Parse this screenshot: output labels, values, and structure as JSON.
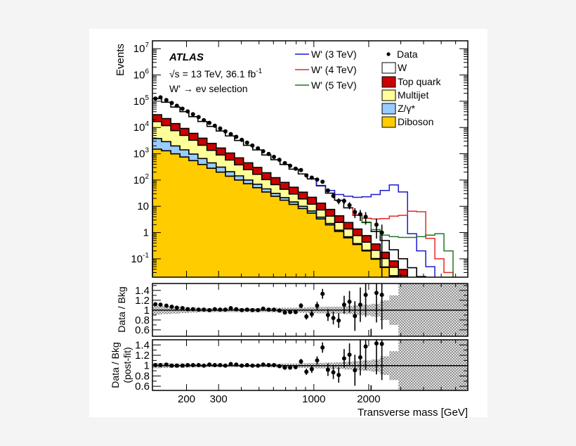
{
  "chart_data": [
    {
      "type": "histogram-stacked",
      "panel": "main",
      "ylabel": "Events",
      "y_scale": "log",
      "x_scale": "log",
      "xlim": [
        130,
        7000
      ],
      "ylim": [
        0.02,
        20000000
      ],
      "y_ticks": [
        {
          "value": 10000000,
          "label": "10",
          "sup": "7"
        },
        {
          "value": 1000000,
          "label": "10",
          "sup": "6"
        },
        {
          "value": 100000,
          "label": "10",
          "sup": "5"
        },
        {
          "value": 10000,
          "label": "10",
          "sup": "4"
        },
        {
          "value": 1000,
          "label": "10",
          "sup": "3"
        },
        {
          "value": 100,
          "label": "10",
          "sup": "2"
        },
        {
          "value": 10,
          "label": "10",
          "sup": ""
        },
        {
          "value": 1,
          "label": "1",
          "sup": ""
        },
        {
          "value": 0.1,
          "label": "10",
          "sup": "-1"
        }
      ],
      "annotations": {
        "experiment": "ATLAS",
        "energy": "√s = 13 TeV, 36.1 fb",
        "energy_sup": "-1",
        "selection": "W' → eν selection"
      },
      "bin_edges": [
        130,
        146,
        164,
        184,
        206,
        231,
        259,
        291,
        327,
        367,
        411,
        462,
        518,
        581,
        652,
        731,
        821,
        921,
        1033,
        1159,
        1301,
        1459,
        1637,
        1837,
        2061,
        2313,
        2595,
        2911,
        3267,
        3665,
        4112,
        4614,
        5177,
        5808
      ],
      "stack": [
        {
          "name": "Diboson",
          "color": "#ffcc00",
          "values": [
            1500,
            1300,
            990,
            750,
            550,
            390,
            280,
            200,
            140,
            100,
            72,
            51,
            35,
            24,
            17,
            11.8,
            8.2,
            5.5,
            3.3,
            1.95,
            1.1,
            0.63,
            0.35,
            0.2,
            0.097,
            0.047,
            0.022,
            0.0104,
            0.005,
            0.0024,
            0.0011,
            0,
            0
          ]
        },
        {
          "name": "Z/γ*",
          "color": "#99ccff",
          "values": [
            2300,
            1600,
            1000,
            660,
            420,
            270,
            170,
            110,
            68,
            44,
            28,
            18,
            11,
            7,
            4.4,
            2.8,
            1.8,
            1.1,
            0.55,
            0.27,
            0.13,
            0.06,
            0.028,
            0.013,
            0.005,
            0.002,
            0.0007,
            0.0002,
            0.0001,
            0,
            0,
            0,
            0
          ]
        },
        {
          "name": "Multijet",
          "color": "#ffff99",
          "values": [
            13000,
            8900,
            5600,
            3600,
            2300,
            1450,
            900,
            590,
            370,
            235,
            148,
            95,
            58,
            36,
            23,
            14.6,
            9,
            5.5,
            3.4,
            2.0,
            1.2,
            0.68,
            0.39,
            0.22,
            0.108,
            0.053,
            0.025,
            0.012,
            0.0058,
            0.0028,
            0.0013,
            0,
            0
          ]
        },
        {
          "name": "Top quark",
          "color": "#cc0000",
          "values": [
            14000,
            10000,
            6500,
            4200,
            2700,
            1800,
            1130,
            750,
            490,
            320,
            205,
            136,
            86,
            56,
            37,
            24,
            15.5,
            9.9,
            5.9,
            3.4,
            1.9,
            1.05,
            0.59,
            0.33,
            0.158,
            0.076,
            0.035,
            0.0167,
            0.008,
            0.0038,
            0.0018,
            0,
            0
          ]
        },
        {
          "name": "W",
          "color": "#ffffff",
          "values": [
            96000,
            70000,
            46000,
            31000,
            20000,
            13000,
            8500,
            5700,
            3700,
            2500,
            1650,
            1100,
            710,
            470,
            310,
            207,
            136,
            88,
            47,
            24,
            12.6,
            6.3,
            3.2,
            1.64,
            0.73,
            0.32,
            0.138,
            0.061,
            0.027,
            0.012,
            0.0051,
            0,
            0
          ]
        }
      ],
      "signals": [
        {
          "name": "W' (3 TeV)",
          "color": "#1a1acc",
          "values": [
            null,
            null,
            null,
            null,
            null,
            null,
            null,
            null,
            null,
            null,
            null,
            null,
            null,
            null,
            null,
            null,
            null,
            null,
            62,
            40,
            28,
            24,
            22,
            23,
            28,
            40,
            65,
            35,
            0.9,
            0.2,
            0.05,
            0.01,
            null
          ]
        },
        {
          "name": "W' (4 TeV)",
          "color": "#e62828",
          "values": [
            null,
            null,
            null,
            null,
            null,
            null,
            null,
            null,
            null,
            null,
            null,
            null,
            null,
            null,
            null,
            null,
            null,
            null,
            null,
            null,
            null,
            null,
            4.8,
            3.5,
            3.3,
            3.4,
            4.2,
            4.5,
            6.5,
            6.2,
            0.6,
            0.1,
            0.03
          ]
        },
        {
          "name": "W' (5 TeV)",
          "color": "#227722",
          "values": [
            null,
            null,
            null,
            null,
            null,
            null,
            null,
            null,
            null,
            null,
            null,
            null,
            null,
            null,
            null,
            null,
            null,
            null,
            null,
            null,
            null,
            null,
            null,
            2.5,
            1.3,
            0.8,
            0.7,
            0.65,
            0.65,
            0.7,
            0.8,
            0.9,
            0.2
          ]
        }
      ],
      "data": {
        "name": "Data",
        "x": [
          135,
          144,
          155,
          166,
          177,
          190,
          203,
          217,
          233,
          249,
          267,
          286,
          306,
          327,
          350,
          375,
          402,
          430,
          460,
          493,
          527,
          565,
          604,
          647,
          693,
          741,
          794,
          850,
          910,
          974,
          1042,
          1116,
          1195,
          1279,
          1369,
          1466,
          1569,
          1680,
          1798,
          1925,
          2061,
          2206,
          2362
        ],
        "y": [
          126000,
          141000,
          111000,
          86000,
          67000,
          52000,
          41000,
          32000,
          25000,
          19000,
          15000,
          11700,
          9200,
          7100,
          5600,
          4400,
          3400,
          2650,
          2060,
          1610,
          1250,
          980,
          760,
          590,
          440,
          350,
          270,
          240,
          150,
          123,
          104,
          86,
          40,
          25,
          16,
          16,
          11,
          6,
          5,
          4,
          0,
          2,
          1
        ]
      },
      "legend": "top-right"
    },
    {
      "type": "ratio",
      "panel": "ratio-prefit",
      "ylabel": "Data / Bkg",
      "ylim": [
        0.47,
        1.54
      ],
      "y_ticks": [
        "1.4",
        "1.2",
        "1",
        "0.8",
        "0.6"
      ],
      "x": [
        135,
        144,
        155,
        166,
        177,
        190,
        203,
        217,
        233,
        249,
        267,
        286,
        306,
        327,
        350,
        375,
        402,
        430,
        460,
        493,
        527,
        565,
        604,
        647,
        693,
        741,
        794,
        850,
        910,
        974,
        1042,
        1116,
        1195,
        1279,
        1369,
        1466,
        1569,
        1680,
        1798,
        1925,
        2061,
        2206,
        2362
      ],
      "ratio": [
        1.12,
        1.11,
        1.09,
        1.07,
        1.05,
        1.04,
        1.02,
        1.02,
        1.01,
        1.01,
        1.0,
        1.02,
        1.01,
        1.01,
        1.04,
        1.02,
        1.0,
        1.01,
        1.0,
        1.0,
        1.03,
        1.01,
        1.01,
        0.99,
        0.95,
        0.96,
        0.96,
        1.09,
        0.87,
        0.92,
        1.09,
        1.33,
        0.9,
        0.84,
        0.79,
        1.11,
        1.17,
        0.88,
        1.11,
        1.31,
        0,
        1.35,
        1.31
      ],
      "errors": [
        0.012,
        0.012,
        0.012,
        0.012,
        0.012,
        0.012,
        0.012,
        0.012,
        0.012,
        0.012,
        0.012,
        0.012,
        0.012,
        0.012,
        0.012,
        0.012,
        0.012,
        0.012,
        0.012,
        0.012,
        0.012,
        0.012,
        0.012,
        0.012,
        0.03,
        0.03,
        0.04,
        0.05,
        0.06,
        0.07,
        0.08,
        0.1,
        0.12,
        0.13,
        0.15,
        0.18,
        0.22,
        0.3,
        0.35,
        0.45,
        0.62,
        0.6,
        0.7
      ],
      "band_edges": [
        130,
        146,
        164,
        184,
        206,
        231,
        259,
        291,
        327,
        367,
        411,
        462,
        518,
        581,
        652,
        731,
        821,
        921,
        1033,
        1159,
        1301,
        1459,
        1637,
        1837,
        2061,
        2313,
        2595,
        2911,
        3267,
        3665,
        4112,
        4614,
        5177,
        5808,
        7000
      ],
      "band_halfwidth": [
        0.09,
        0.08,
        0.07,
        0.06,
        0.05,
        0.04,
        0.04,
        0.04,
        0.04,
        0.04,
        0.04,
        0.04,
        0.04,
        0.045,
        0.05,
        0.05,
        0.055,
        0.06,
        0.065,
        0.07,
        0.07,
        0.08,
        0.1,
        0.11,
        0.13,
        0.2,
        0.3,
        1,
        1,
        1,
        1,
        1,
        1,
        1
      ]
    },
    {
      "type": "ratio",
      "panel": "ratio-postfit",
      "ylabel": "Data / Bkg",
      "ylabel2": "(post-fit)",
      "ylim": [
        0.52,
        1.5
      ],
      "y_ticks": [
        "1.4",
        "1.2",
        "1",
        "0.8",
        "0.6"
      ],
      "x_ticks": [
        "200",
        "300",
        "1000",
        "2000"
      ],
      "xlabel": "Transverse mass [GeV]",
      "x": [
        135,
        144,
        155,
        166,
        177,
        190,
        203,
        217,
        233,
        249,
        267,
        286,
        306,
        327,
        350,
        375,
        402,
        430,
        460,
        493,
        527,
        565,
        604,
        647,
        693,
        741,
        794,
        850,
        910,
        974,
        1042,
        1116,
        1195,
        1279,
        1369,
        1466,
        1569,
        1680,
        1798,
        1925,
        2061,
        2206,
        2362
      ],
      "ratio": [
        1.01,
        1.01,
        1.02,
        1.0,
        1.0,
        1.0,
        1.01,
        1.01,
        1.01,
        1.0,
        1.02,
        1.01,
        1.01,
        1.0,
        1.03,
        1.02,
        1.0,
        1.01,
        1.0,
        1.0,
        1.02,
        1.01,
        1.01,
        0.99,
        0.96,
        0.96,
        0.97,
        1.08,
        0.88,
        0.93,
        1.1,
        1.35,
        0.92,
        0.87,
        0.82,
        1.14,
        1.21,
        0.91,
        1.16,
        1.37,
        0,
        1.43,
        1.42
      ],
      "errors": [
        0.012,
        0.012,
        0.012,
        0.012,
        0.012,
        0.012,
        0.012,
        0.012,
        0.012,
        0.012,
        0.012,
        0.012,
        0.012,
        0.012,
        0.012,
        0.012,
        0.012,
        0.012,
        0.012,
        0.012,
        0.012,
        0.012,
        0.012,
        0.012,
        0.03,
        0.03,
        0.04,
        0.05,
        0.06,
        0.07,
        0.08,
        0.1,
        0.12,
        0.13,
        0.15,
        0.18,
        0.22,
        0.3,
        0.35,
        0.45,
        0.62,
        0.6,
        0.7
      ],
      "band_edges": [
        130,
        146,
        164,
        184,
        206,
        231,
        259,
        291,
        327,
        367,
        411,
        462,
        518,
        581,
        652,
        731,
        821,
        921,
        1033,
        1159,
        1301,
        1459,
        1637,
        1837,
        2061,
        2313,
        2595,
        2911,
        3267,
        3665,
        4112,
        4614,
        5177,
        5808,
        7000
      ],
      "band_halfwidth": [
        0.05,
        0.045,
        0.04,
        0.04,
        0.035,
        0.03,
        0.03,
        0.03,
        0.03,
        0.03,
        0.03,
        0.03,
        0.03,
        0.035,
        0.04,
        0.04,
        0.045,
        0.05,
        0.055,
        0.06,
        0.065,
        0.075,
        0.09,
        0.1,
        0.12,
        0.18,
        0.28,
        1,
        1,
        1,
        1,
        1,
        1,
        1
      ]
    }
  ]
}
